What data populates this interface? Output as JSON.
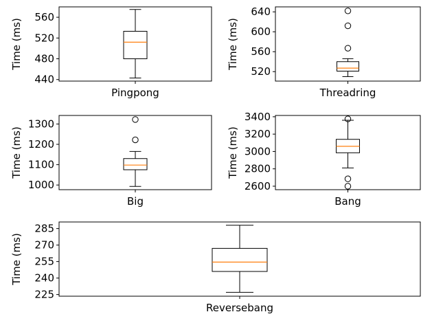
{
  "chart_data": [
    {
      "type": "box",
      "category": "Pingpong",
      "ylabel": "Time (ms)",
      "ylim": [
        437,
        580
      ],
      "yticks": [
        440,
        480,
        520,
        560
      ],
      "box": {
        "whisker_low": 443,
        "q1": 480,
        "median": 512,
        "q3": 533,
        "whisker_high": 575
      },
      "outliers": []
    },
    {
      "type": "box",
      "category": "Threadring",
      "ylabel": "Time (ms)",
      "ylim": [
        501,
        650
      ],
      "yticks": [
        520,
        560,
        600,
        640
      ],
      "box": {
        "whisker_low": 510,
        "q1": 521,
        "median": 527,
        "q3": 540,
        "whisker_high": 546
      },
      "outliers": [
        567,
        612,
        642
      ]
    },
    {
      "type": "box",
      "category": "Big",
      "ylabel": "Time (ms)",
      "ylim": [
        977,
        1342
      ],
      "yticks": [
        1000,
        1100,
        1200,
        1300
      ],
      "box": {
        "whisker_low": 993,
        "q1": 1075,
        "median": 1098,
        "q3": 1130,
        "whisker_high": 1165
      },
      "outliers": [
        1222,
        1322
      ]
    },
    {
      "type": "box",
      "category": "Bang",
      "ylabel": "Time (ms)",
      "ylim": [
        2560,
        3415
      ],
      "yticks": [
        2600,
        2800,
        3000,
        3200,
        3400
      ],
      "box": {
        "whisker_low": 2810,
        "q1": 2985,
        "median": 3060,
        "q3": 3140,
        "whisker_high": 3360
      },
      "outliers": [
        2600,
        2685,
        3375
      ]
    },
    {
      "type": "box",
      "category": "Reversebang",
      "ylabel": "Time (ms)",
      "ylim": [
        223.5,
        291
      ],
      "yticks": [
        225,
        240,
        255,
        270,
        285
      ],
      "box": {
        "whisker_low": 227,
        "q1": 246,
        "median": 254.5,
        "q3": 267,
        "whisker_high": 288
      },
      "outliers": []
    }
  ],
  "colors": {
    "axes": "#000000",
    "box": "#000000",
    "median": "#ff7f0e",
    "background": "#ffffff"
  }
}
